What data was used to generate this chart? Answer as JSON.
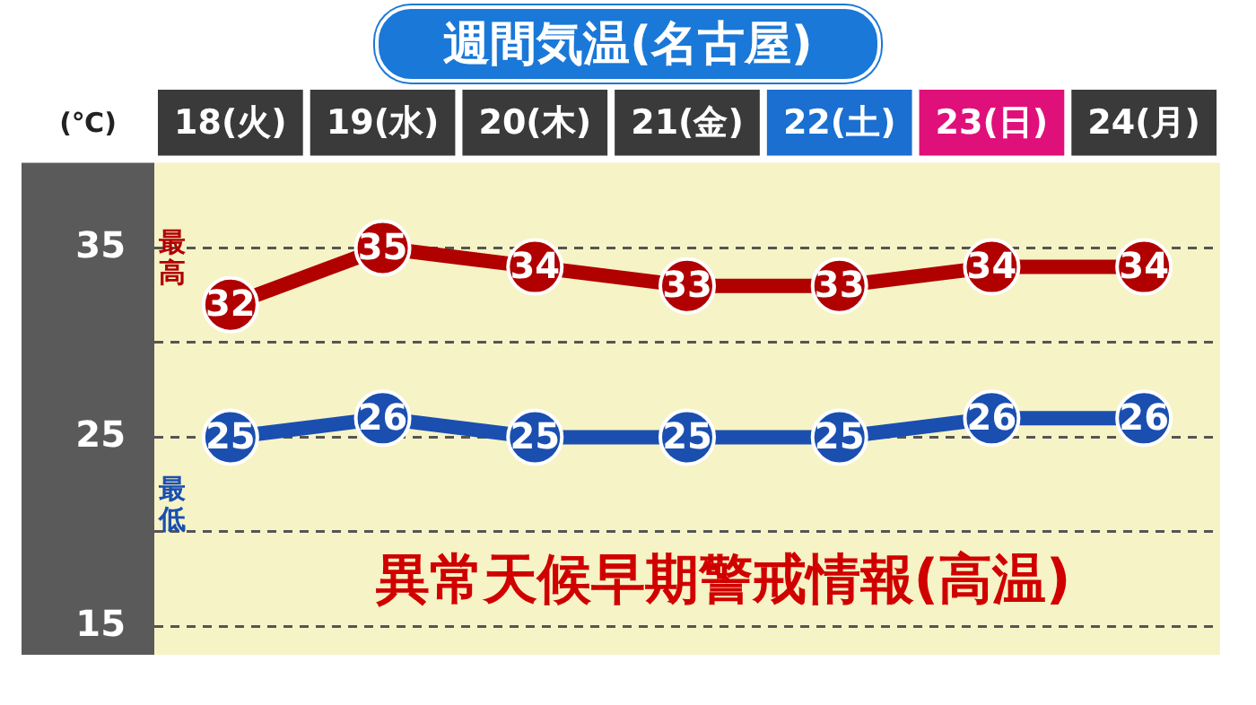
{
  "chart_data": {
    "type": "line",
    "title": "週間気温(名古屋)",
    "ylabel": "(℃)",
    "categories": [
      "18(火)",
      "19(水)",
      "20(木)",
      "21(金)",
      "22(土)",
      "23(日)",
      "24(月)"
    ],
    "series": [
      {
        "name": "最高",
        "color": "#b00000",
        "values": [
          32,
          35,
          34,
          33,
          33,
          34,
          34
        ]
      },
      {
        "name": "最低",
        "color": "#1a4fb0",
        "values": [
          25,
          26,
          25,
          25,
          25,
          26,
          26
        ]
      }
    ],
    "ylim": [
      13.5,
      39.5
    ],
    "yticks": [
      15,
      {
        "value": 20,
        "label": null
      },
      25,
      {
        "value": 30,
        "label": null
      },
      35
    ],
    "grid": "y",
    "marker": "circle",
    "line_style": "solid",
    "data_labels": true,
    "legend": false,
    "annotations": [
      "異常天候早期警戒情報(高温)"
    ]
  }
}
